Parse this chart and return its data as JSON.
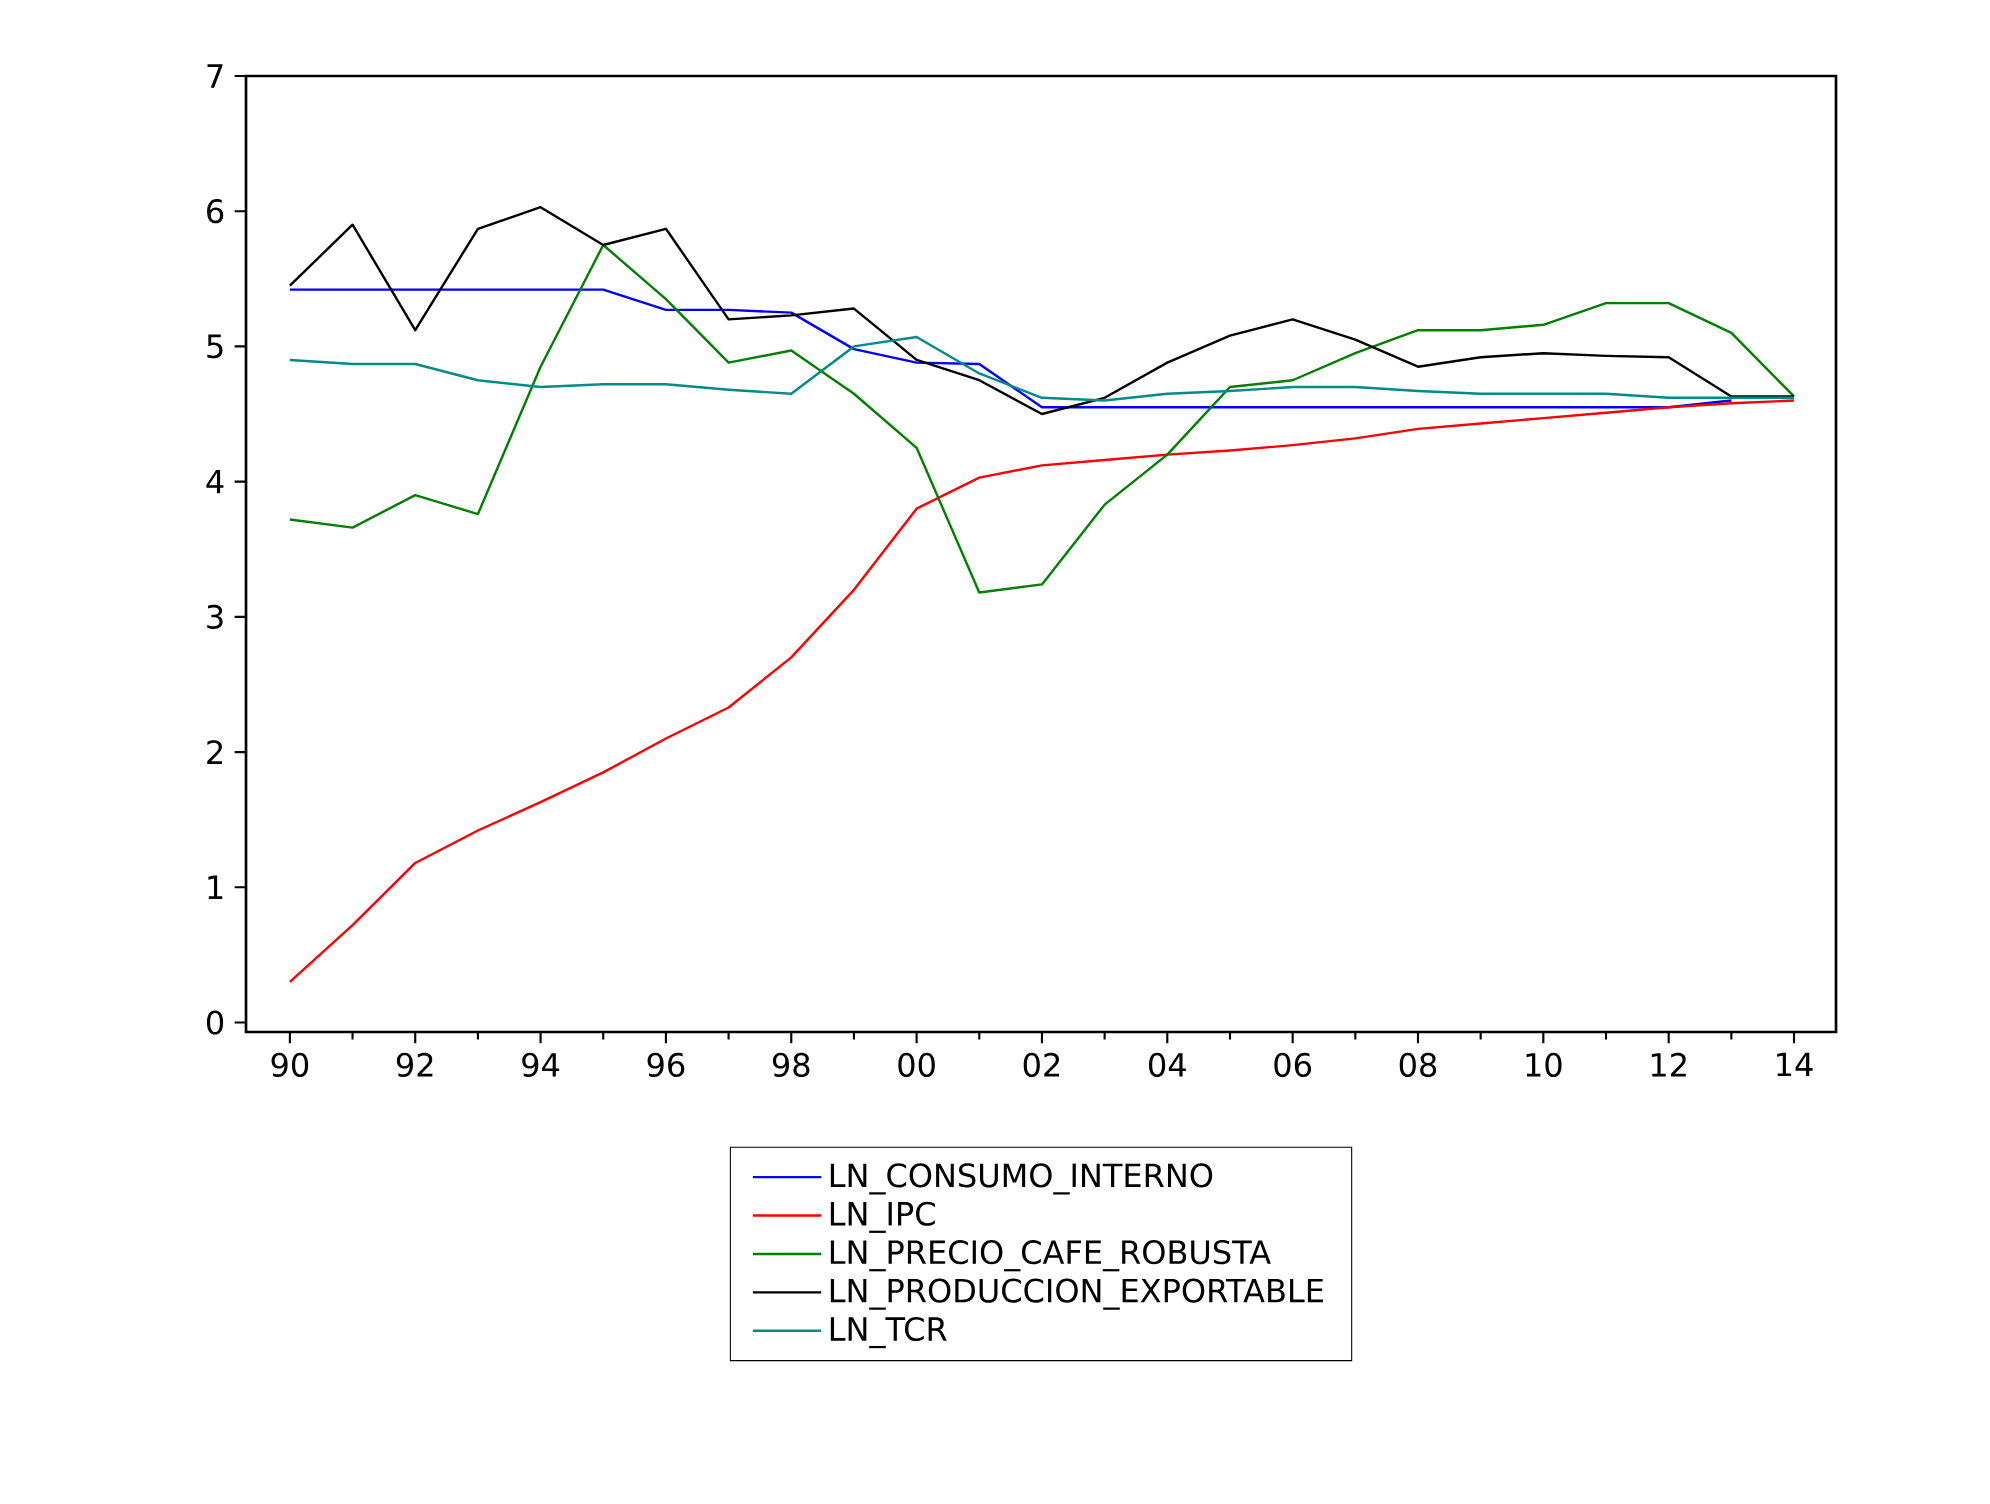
{
  "chart_data": {
    "type": "line",
    "x": [
      1990,
      1991,
      1992,
      1993,
      1994,
      1995,
      1996,
      1997,
      1998,
      1999,
      2000,
      2001,
      2002,
      2003,
      2004,
      2005,
      2006,
      2007,
      2008,
      2009,
      2010,
      2011,
      2012,
      2013,
      2014
    ],
    "series": [
      {
        "name": "LN_CONSUMO_INTERNO",
        "color": "#0000ff",
        "values": [
          5.42,
          5.42,
          5.42,
          5.42,
          5.42,
          5.42,
          5.27,
          5.27,
          5.25,
          4.98,
          4.88,
          4.87,
          4.55,
          4.55,
          4.55,
          4.55,
          4.55,
          4.55,
          4.55,
          4.55,
          4.55,
          4.55,
          4.55,
          4.6,
          null
        ]
      },
      {
        "name": "LN_IPC",
        "color": "#ff0000",
        "values": [
          0.3,
          0.72,
          1.18,
          1.42,
          1.63,
          1.85,
          2.1,
          2.33,
          2.7,
          3.2,
          3.8,
          4.03,
          4.12,
          4.16,
          4.2,
          4.23,
          4.27,
          4.32,
          4.39,
          4.43,
          4.47,
          4.51,
          4.55,
          4.58,
          4.6
        ]
      },
      {
        "name": "LN_PRECIO_CAFE_ROBUSTA",
        "color": "#008000",
        "values": [
          3.72,
          3.66,
          3.9,
          3.76,
          4.85,
          5.75,
          5.35,
          4.88,
          4.97,
          4.65,
          4.25,
          3.18,
          3.24,
          3.83,
          4.2,
          4.7,
          4.75,
          4.95,
          5.12,
          5.12,
          5.16,
          5.32,
          5.32,
          5.1,
          4.63
        ]
      },
      {
        "name": "LN_PRODUCCION_EXPORTABLE",
        "color": "#000000",
        "values": [
          5.45,
          5.9,
          5.12,
          5.87,
          6.03,
          5.75,
          5.87,
          5.2,
          5.23,
          5.28,
          4.9,
          4.75,
          4.5,
          4.62,
          4.88,
          5.08,
          5.2,
          5.05,
          4.85,
          4.92,
          4.95,
          4.93,
          4.92,
          4.63,
          4.63
        ]
      },
      {
        "name": "LN_TCR",
        "color": "#008b8b",
        "values": [
          4.9,
          4.87,
          4.87,
          4.75,
          4.7,
          4.72,
          4.72,
          4.68,
          4.65,
          5.0,
          5.07,
          4.8,
          4.62,
          4.6,
          4.65,
          4.67,
          4.7,
          4.7,
          4.67,
          4.65,
          4.65,
          4.65,
          4.62,
          4.62,
          4.62
        ]
      }
    ],
    "xlim": [
      1989.3,
      2014.67
    ],
    "ylim": [
      -0.07,
      7
    ],
    "xticks": [
      {
        "value": 1990,
        "label": "90"
      },
      {
        "value": 1992,
        "label": "92"
      },
      {
        "value": 1994,
        "label": "94"
      },
      {
        "value": 1996,
        "label": "96"
      },
      {
        "value": 1998,
        "label": "98"
      },
      {
        "value": 2000,
        "label": "00"
      },
      {
        "value": 2002,
        "label": "02"
      },
      {
        "value": 2004,
        "label": "04"
      },
      {
        "value": 2006,
        "label": "06"
      },
      {
        "value": 2008,
        "label": "08"
      },
      {
        "value": 2010,
        "label": "10"
      },
      {
        "value": 2012,
        "label": "12"
      },
      {
        "value": 2014,
        "label": "14"
      }
    ],
    "yticks": [
      0,
      1,
      2,
      3,
      4,
      5,
      6,
      7
    ],
    "grid": false,
    "legend": "bottom",
    "marker": "none",
    "line_style": "solid"
  }
}
